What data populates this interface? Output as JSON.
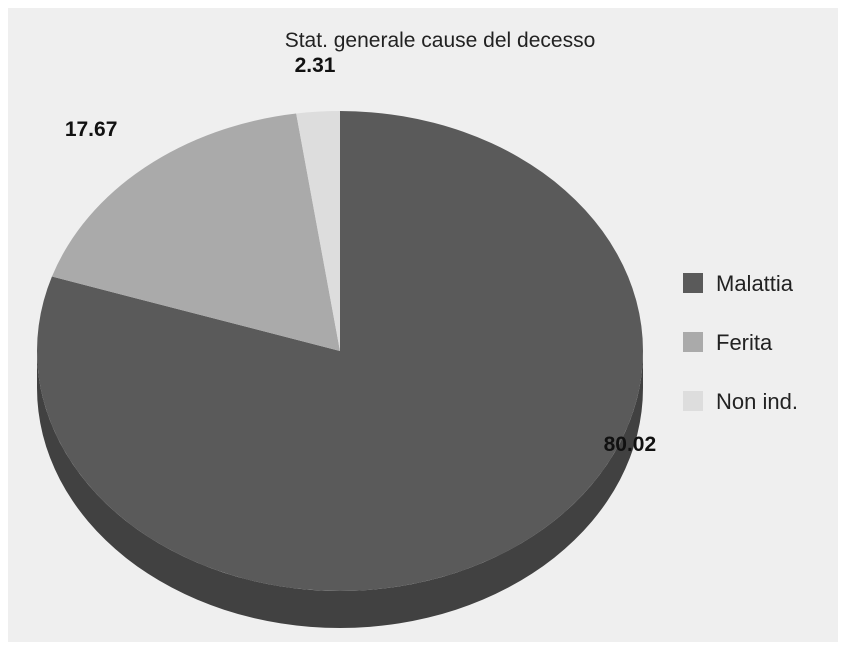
{
  "chart_data": {
    "type": "pie",
    "title": "Stat. generale cause del decesso",
    "categories": [
      "Malattia",
      "Ferita",
      "Non ind."
    ],
    "values": [
      80.02,
      17.67,
      2.31
    ],
    "value_labels": [
      "80.02",
      "17.67",
      "2.31"
    ],
    "colors": [
      "#5a5a5a",
      "#aaaaaa",
      "#dddddd"
    ],
    "side_colors": [
      "#414141",
      "#8a8a8a",
      "#bcbcbc"
    ],
    "style": "3d-tilted",
    "legend_position": "right"
  }
}
